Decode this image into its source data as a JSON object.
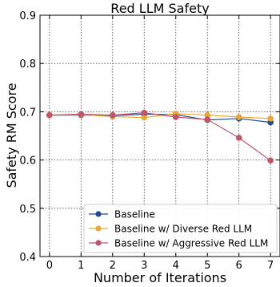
{
  "chart_data": {
    "type": "line",
    "title": "Red LLM Safety",
    "xlabel": "Number of Iterations",
    "ylabel": "Safety RM Score",
    "x": [
      0,
      1,
      2,
      3,
      4,
      5,
      6,
      7
    ],
    "xlim": [
      -0.3,
      7.3
    ],
    "ylim": [
      0.4,
      0.9
    ],
    "xticks": [
      "0",
      "1",
      "2",
      "3",
      "4",
      "5",
      "6",
      "7"
    ],
    "yticks": [
      "0.4",
      "0.5",
      "0.6",
      "0.7",
      "0.8",
      "0.9"
    ],
    "grid": true,
    "legend_position": "lower-right",
    "series": [
      {
        "name": "Baseline",
        "color": "#1f4e8c",
        "values": [
          0.693,
          0.693,
          0.692,
          0.695,
          0.694,
          0.683,
          0.686,
          0.678
        ]
      },
      {
        "name": "Baseline w/ Diverse Red LLM",
        "color": "#e8a838",
        "values": [
          0.693,
          0.694,
          0.69,
          0.688,
          0.696,
          0.693,
          0.689,
          0.686
        ]
      },
      {
        "name": "Baseline w/ Aggressive Red LLM",
        "color": "#c0566a",
        "values": [
          0.693,
          0.695,
          0.693,
          0.698,
          0.689,
          0.684,
          0.646,
          0.599
        ]
      }
    ]
  }
}
